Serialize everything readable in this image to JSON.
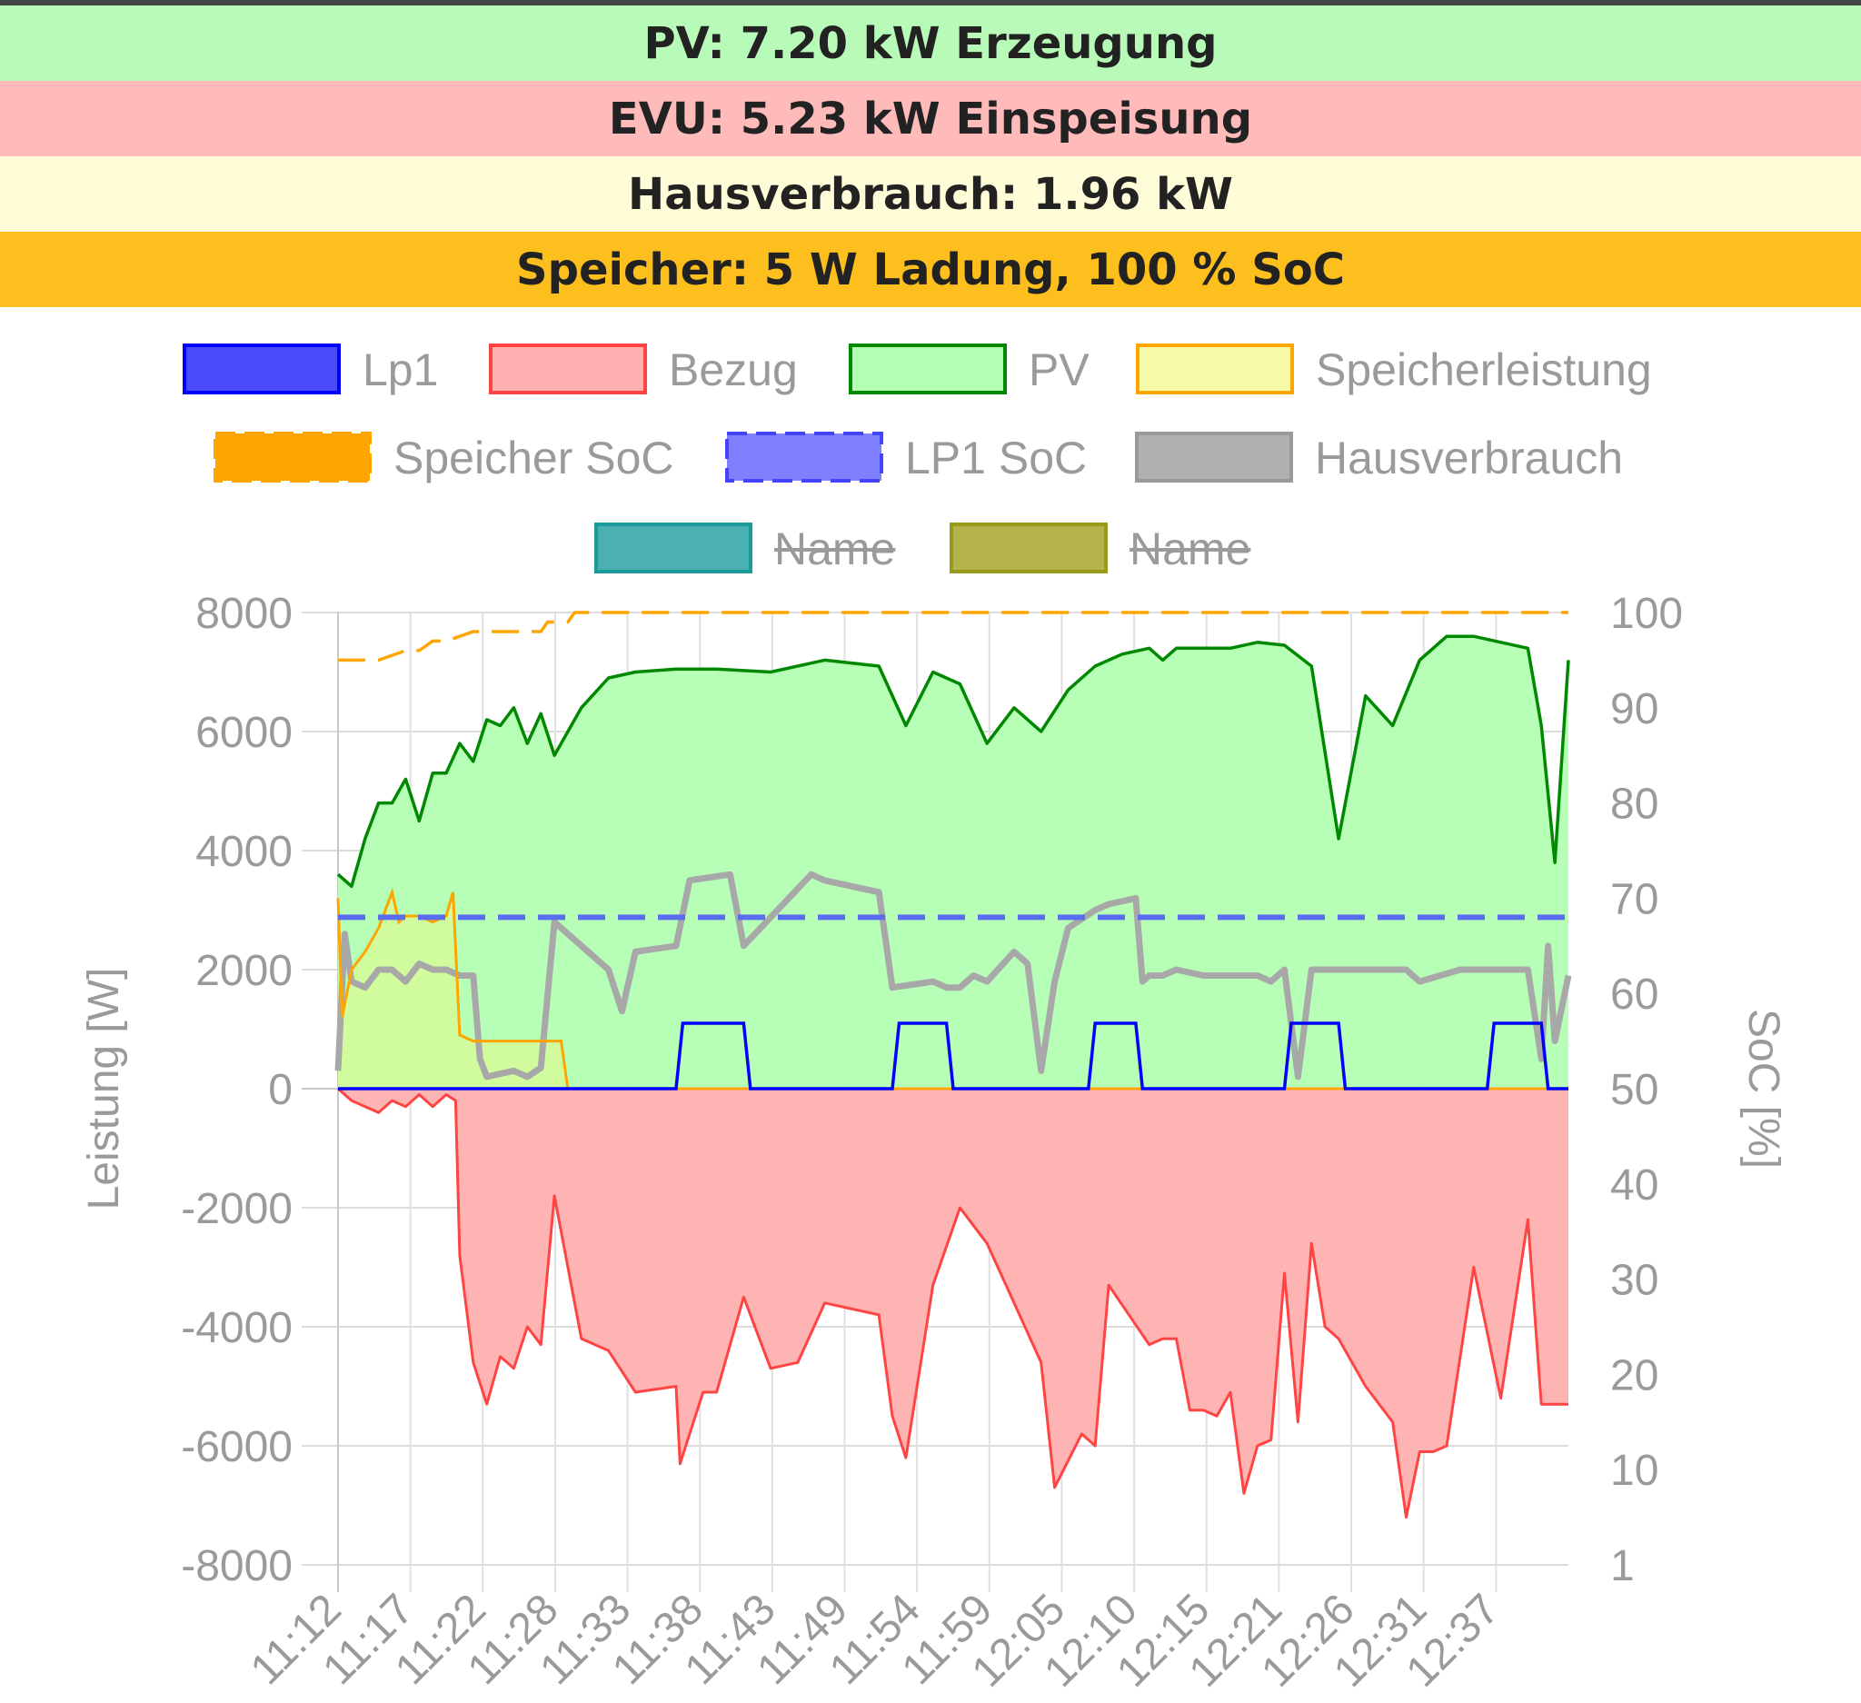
{
  "status": {
    "pv": "PV: 7.20 kW Erzeugung",
    "evu": "EVU: 5.23 kW Einspeisung",
    "haus": "Hausverbrauch: 1.96 kW",
    "speicher": "Speicher: 5 W Ladung, 100 % SoC"
  },
  "colors": {
    "pv_banner": "#b8fbb8",
    "evu_banner": "#ffbaba",
    "haus_banner": "#fefdd8",
    "speicher_banner": "#fcbf1e"
  },
  "chart_data": {
    "type": "line",
    "legend_placement": "top",
    "grid": true,
    "legend": [
      {
        "label": "Lp1",
        "color": "#0000ff",
        "fill": "#4a4af8",
        "style": "solid",
        "hidden": false
      },
      {
        "label": "Bezug",
        "color": "#ff4444",
        "fill": "#ffb0b0",
        "style": "solid",
        "hidden": false
      },
      {
        "label": "PV",
        "color": "#008800",
        "fill": "#b3ffb3",
        "style": "solid",
        "hidden": false
      },
      {
        "label": "Speicherleistung",
        "color": "#ffa500",
        "fill": "#f6f9a8",
        "style": "solid",
        "hidden": false
      },
      {
        "label": "Speicher SoC",
        "color": "#ffa500",
        "fill": "#ffa500",
        "style": "dashed",
        "hidden": false
      },
      {
        "label": "LP1 SoC",
        "color": "#4444ff",
        "fill": "#8080ff",
        "style": "dashed",
        "hidden": false
      },
      {
        "label": "Hausverbrauch",
        "color": "#999999",
        "fill": "#b0b0b0",
        "style": "solid",
        "hidden": false
      },
      {
        "label": "Name",
        "color": "#1a9a9a",
        "fill": "#4ab0b0",
        "style": "solid",
        "hidden": true
      },
      {
        "label": "Name",
        "color": "#9a9a1a",
        "fill": "#b4b44a",
        "style": "solid",
        "hidden": true
      }
    ],
    "x_range_minutes": [
      0,
      91
    ],
    "xtick_labels": [
      "11:12",
      "11:17",
      "11:22",
      "11:28",
      "11:33",
      "11:38",
      "11:43",
      "11:49",
      "11:54",
      "11:59",
      "12:05",
      "12:10",
      "12:15",
      "12:21",
      "12:26",
      "12:31",
      "12:37"
    ],
    "y_left": {
      "label": "Leistung [W]",
      "range": [
        -8000,
        8000
      ],
      "ticks": [
        8000,
        6000,
        4000,
        2000,
        0,
        -2000,
        -4000,
        -6000,
        -8000
      ]
    },
    "y_right": {
      "label": "SoC [%]",
      "range": [
        0,
        100
      ],
      "tick_labels": [
        "100",
        "90",
        "80",
        "70",
        "60",
        "50",
        "40",
        "30",
        "20",
        "10",
        "1"
      ]
    },
    "series": [
      {
        "name": "PV",
        "axis": "left",
        "x": [
          0,
          1,
          2,
          3,
          4,
          5,
          6,
          7,
          8,
          9,
          10,
          11,
          12,
          13,
          14,
          15,
          16,
          18,
          20,
          22,
          25,
          28,
          32,
          36,
          40,
          42,
          44,
          46,
          48,
          50,
          52,
          54,
          56,
          58,
          60,
          61,
          62,
          64,
          66,
          68,
          70,
          72,
          74,
          76,
          78,
          80,
          82,
          84,
          86,
          88,
          89,
          90,
          91
        ],
        "y": [
          3600,
          3400,
          4200,
          4800,
          4800,
          5200,
          4500,
          5300,
          5300,
          5800,
          5500,
          6200,
          6100,
          6400,
          5800,
          6300,
          5600,
          6400,
          6900,
          7000,
          7050,
          7050,
          7000,
          7200,
          7100,
          6100,
          7000,
          6800,
          5800,
          6400,
          6000,
          6700,
          7100,
          7300,
          7400,
          7200,
          7400,
          7400,
          7400,
          7500,
          7450,
          7100,
          4200,
          6600,
          6100,
          7200,
          7600,
          7600,
          7500,
          7400,
          6100,
          3800,
          7200
        ]
      },
      {
        "name": "Bezug",
        "axis": "left",
        "x": [
          0,
          1,
          2,
          3,
          4,
          5,
          6,
          7,
          8,
          8.7,
          9,
          10,
          11,
          12,
          13,
          14,
          15,
          16,
          18,
          20,
          22,
          25,
          25.3,
          27,
          28,
          30,
          32,
          34,
          36,
          40,
          41,
          42,
          44,
          46,
          48,
          50,
          52,
          53,
          55,
          56,
          57,
          60,
          61,
          62,
          63,
          64,
          65,
          66,
          67,
          68,
          69,
          70,
          71,
          72,
          73,
          74,
          76,
          78,
          79,
          80,
          81,
          82,
          84,
          86,
          88,
          89,
          90,
          91
        ],
        "y": [
          0,
          -200,
          -300,
          -400,
          -200,
          -300,
          -100,
          -300,
          -100,
          -200,
          -2800,
          -4600,
          -5300,
          -4500,
          -4700,
          -4000,
          -4300,
          -1800,
          -4200,
          -4400,
          -5100,
          -5000,
          -6300,
          -5100,
          -5100,
          -3500,
          -4700,
          -4600,
          -3600,
          -3800,
          -5500,
          -6200,
          -3300,
          -2000,
          -2600,
          -3600,
          -4600,
          -6700,
          -5800,
          -6000,
          -3300,
          -4300,
          -4200,
          -4200,
          -5400,
          -5400,
          -5500,
          -5100,
          -6800,
          -6000,
          -5900,
          -3100,
          -5600,
          -2600,
          -4000,
          -4200,
          -5000,
          -5600,
          -7200,
          -6100,
          -6100,
          -6000,
          -3000,
          -5200,
          -2200,
          -5300,
          -5300,
          -5300
        ]
      },
      {
        "name": "Hausverbrauch",
        "axis": "left",
        "x": [
          0,
          0.5,
          1,
          2,
          3,
          4,
          5,
          6,
          7,
          8,
          9,
          10,
          10.5,
          11,
          12,
          13,
          14,
          15,
          16,
          20,
          21,
          22,
          25,
          26,
          29,
          30,
          35,
          36,
          40,
          41,
          44,
          45,
          46,
          47,
          48,
          50,
          51,
          52,
          53,
          54,
          56,
          57,
          59,
          59.5,
          60,
          61,
          62,
          64,
          67,
          68,
          69,
          70,
          71,
          72,
          75,
          76,
          79,
          80,
          83,
          84,
          85,
          86,
          88,
          89,
          89.5,
          90,
          91
        ],
        "y": [
          300,
          2600,
          1800,
          1700,
          2000,
          2000,
          1800,
          2100,
          2000,
          2000,
          1900,
          1900,
          500,
          200,
          250,
          300,
          200,
          350,
          2800,
          2000,
          1300,
          2300,
          2400,
          3500,
          3600,
          2400,
          3600,
          3500,
          3300,
          1700,
          1800,
          1700,
          1700,
          1900,
          1800,
          2300,
          2100,
          300,
          1800,
          2700,
          3000,
          3100,
          3200,
          1800,
          1900,
          1900,
          2000,
          1900,
          1900,
          1900,
          1800,
          2000,
          200,
          2000,
          2000,
          2000,
          2000,
          1800,
          2000,
          2000,
          2000,
          2000,
          2000,
          500,
          2400,
          800,
          1900
        ]
      },
      {
        "name": "Speicherleistung",
        "axis": "left",
        "x": [
          0,
          0.3,
          1,
          2,
          3,
          4,
          4.5,
          5,
          6,
          7,
          8,
          8.5,
          9,
          10,
          12,
          14,
          16,
          16.5,
          17,
          91
        ],
        "y": [
          3200,
          1200,
          2000,
          2300,
          2700,
          3300,
          2800,
          2900,
          2900,
          2800,
          2900,
          3300,
          900,
          800,
          800,
          800,
          800,
          800,
          0,
          0
        ]
      },
      {
        "name": "Lp1",
        "axis": "left",
        "x": [
          0,
          25,
          25.5,
          30,
          30.5,
          41,
          41.5,
          45,
          45.5,
          55.5,
          56,
          59,
          59.5,
          70,
          70.5,
          74,
          74.5,
          85,
          85.5,
          89,
          89.5,
          91
        ],
        "y": [
          0,
          0,
          1100,
          1100,
          0,
          0,
          1100,
          1100,
          0,
          0,
          1100,
          1100,
          0,
          0,
          1100,
          1100,
          0,
          0,
          1100,
          1100,
          0,
          0
        ]
      },
      {
        "name": "Speicher SoC",
        "axis": "right",
        "x": [
          0,
          3,
          5,
          6,
          7,
          8,
          10,
          15,
          15.5,
          17,
          17.5,
          91
        ],
        "y": [
          95,
          95,
          96,
          96,
          97,
          97,
          98,
          98,
          99,
          99,
          100,
          100
        ]
      },
      {
        "name": "LP1 SoC",
        "axis": "right",
        "x": [
          0,
          91
        ],
        "y": [
          68,
          68
        ]
      }
    ]
  }
}
